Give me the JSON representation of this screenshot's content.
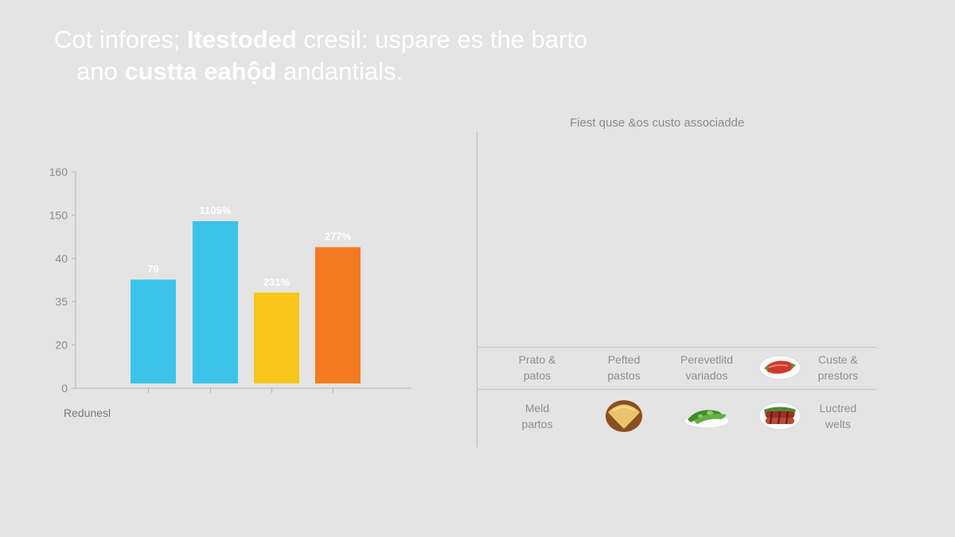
{
  "headline": {
    "w1": "Cot infores; ",
    "w2": "Itestoded",
    "w3": " cresil: uspare es the barto",
    "w4": "ano ",
    "w5": "custta eahộd",
    "w6": " andantials."
  },
  "chart_data": {
    "type": "bar",
    "y_tick_labels": [
      "0",
      "20",
      "35",
      "40",
      "150",
      "160"
    ],
    "bars": [
      {
        "label": "79",
        "level": 0.48,
        "color": "#3cc3ea"
      },
      {
        "label": "1105%",
        "level": 0.75,
        "color": "#3cc3ea"
      },
      {
        "label": "231%",
        "level": 0.42,
        "color": "#f8c51a"
      },
      {
        "label": "277%",
        "level": 0.63,
        "color": "#f47a21"
      }
    ],
    "xlabel": "Redunesl"
  },
  "panel": {
    "title": "Fiest quse &os custo associadde",
    "rows": [
      [
        {
          "kind": "text",
          "lines": [
            "Prato &",
            "patos"
          ]
        },
        {
          "kind": "text",
          "lines": [
            "Pefted",
            "pastos"
          ]
        },
        {
          "kind": "text",
          "lines": [
            "Perevetlitd",
            "variados"
          ]
        },
        {
          "kind": "icon",
          "icon": "meat-plate-icon"
        },
        {
          "kind": "text",
          "lines": [
            "Custe &",
            "prestors"
          ]
        }
      ],
      [
        {
          "kind": "text",
          "lines": [
            "Meld",
            "partos"
          ]
        },
        {
          "kind": "icon",
          "icon": "bread-bun-icon"
        },
        {
          "kind": "icon",
          "icon": "green-vegetables-icon"
        },
        {
          "kind": "icon",
          "icon": "grilled-meat-icon"
        },
        {
          "kind": "text",
          "lines": [
            "Luctred",
            "welts"
          ]
        }
      ]
    ]
  }
}
